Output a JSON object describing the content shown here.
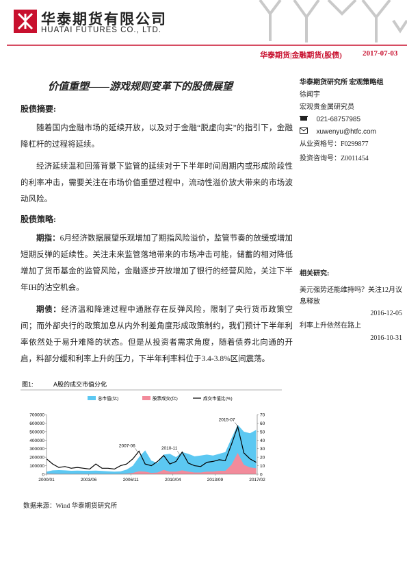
{
  "header": {
    "company": "华泰期货有限公司",
    "company_en": "HUATAI FUTURES CO., LTD.",
    "section": "华泰期货|金融期货(股债)",
    "date": "2017-07-03"
  },
  "article": {
    "title": "价值重塑——游戏规则变革下的股债展望",
    "sections": [
      {
        "heading": "股债摘要:",
        "paragraphs": [
          {
            "text": "随着国内金融市场的延续开放，以及对于金融“脱虚向实”的指引下，金融降杠杆的过程将延续。"
          },
          {
            "text": "经济延续温和回落背景下监管的延续对于下半年时间周期内或形成阶段性的利率冲击，需要关注在市场价值重塑过程中，流动性溢价放大带来的市场波动风险。"
          }
        ]
      },
      {
        "heading": "股债策略:",
        "paragraphs": [
          {
            "lead": "期指：",
            "text": "6月经济数据展望乐观增加了期指风险溢价，监管节奏的放缓或增加短期反弹的延续性。关注未来监管落地带来的市场冲击可能，储蓄的相对降低增加了货币基金的监管风险，金融逐步开放增加了银行的经营风险，关注下半年IH的沽空机会。"
          },
          {
            "lead": "期债：",
            "text": "经济温和降速过程中通胀存在反弹风险，限制了央行货币政策空间；而外部央行的政策加息从内外利差角度形成政策制约，我们预计下半年利率依然处于易升难降的状态。但是从投资者需求角度，随着债券北向通的开启，料部分缓和利率上升的压力，下半年利率料位于3.4-3.8%区间震荡。"
          }
        ]
      }
    ]
  },
  "figure": {
    "label": "图1:",
    "caption": "A股的成交市值分化",
    "source": "数据来源：Wind 华泰期货研究所"
  },
  "chart_data": {
    "type": "combo",
    "x": [
      "2000/01",
      "2000/07",
      "2001/01",
      "2001/07",
      "2002/01",
      "2002/07",
      "2003/01",
      "2003/07",
      "2004/01",
      "2004/07",
      "2005/01",
      "2005/07",
      "2006/01",
      "2006/07",
      "2007/01",
      "2007/07",
      "2008/01",
      "2008/07",
      "2009/01",
      "2009/07",
      "2010/01",
      "2010/07",
      "2011/01",
      "2011/07",
      "2012/01",
      "2012/07",
      "2013/01",
      "2013/07",
      "2014/01",
      "2014/07",
      "2015/01",
      "2015/07",
      "2016/01",
      "2016/07",
      "2017/01"
    ],
    "series": [
      {
        "name": "总市值(亿)",
        "type": "area",
        "color": "#5cc8f2",
        "values": [
          30000,
          45000,
          48000,
          45000,
          40000,
          42000,
          40000,
          40000,
          42000,
          38000,
          35000,
          30000,
          33000,
          55000,
          100000,
          200000,
          280000,
          160000,
          130000,
          230000,
          240000,
          200000,
          260000,
          240000,
          210000,
          220000,
          230000,
          220000,
          240000,
          260000,
          420000,
          580000,
          500000,
          480000,
          520000
        ]
      },
      {
        "name": "股票成交(亿)",
        "type": "area",
        "color": "#f28b9b",
        "values": [
          6000,
          5000,
          3000,
          4000,
          2500,
          3000,
          2500,
          2500,
          5000,
          2500,
          2500,
          2000,
          3500,
          6000,
          15000,
          35000,
          30000,
          15000,
          20000,
          50000,
          30000,
          30000,
          45000,
          30000,
          20000,
          20000,
          30000,
          30000,
          40000,
          40000,
          110000,
          250000,
          110000,
          80000,
          70000
        ]
      },
      {
        "name": "成交市值比(%)",
        "type": "line",
        "axis": "y2",
        "color": "#000000",
        "values": [
          18,
          12,
          8,
          9,
          7,
          8,
          7,
          6,
          12,
          7,
          7,
          6,
          10,
          12,
          18,
          27,
          12,
          10,
          15,
          22,
          12,
          15,
          26,
          13,
          10,
          9,
          14,
          15,
          17,
          16,
          35,
          56,
          25,
          18,
          14
        ]
      }
    ],
    "xlim": [
      "2000/01",
      "2017/02"
    ],
    "xticks": [
      "2000/01",
      "2003/06",
      "2006/11",
      "2010/04",
      "2013/09",
      "2017/02"
    ],
    "ylim": [
      0,
      700000
    ],
    "yticks": [
      0,
      100000,
      200000,
      300000,
      400000,
      500000,
      600000,
      700000
    ],
    "y2lim": [
      0,
      70
    ],
    "y2ticks": [
      0,
      10,
      20,
      30,
      40,
      50,
      60,
      70
    ],
    "annotations": [
      {
        "text": "2007-06"
      },
      {
        "text": "2010-11"
      },
      {
        "text": "2015-07"
      }
    ]
  },
  "sidebar": {
    "team": "华泰期货研究所 宏观策略组",
    "analyst": "徐闻宇",
    "role": "宏观贵金属研究员",
    "phone": "021-68757985",
    "email": "xuwenyu@htfc.com",
    "license": "从业资格号：F0299877",
    "consult": "投资咨询号：Z0011454",
    "related_heading": "相关研究:",
    "related": [
      {
        "title": "美元强势还能维持吗？关注12月议息释放",
        "date": "2016-12-05"
      },
      {
        "title": "利率上升依然在路上",
        "date": "2016-10-31"
      }
    ]
  }
}
